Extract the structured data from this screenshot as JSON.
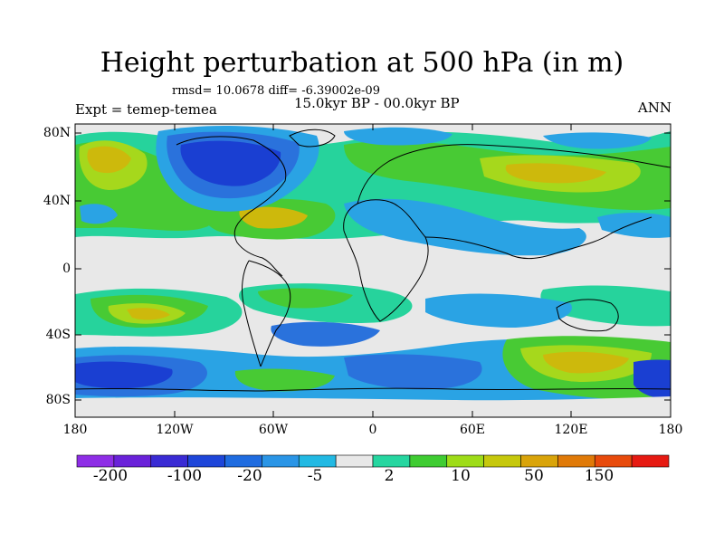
{
  "title": "Height perturbation at 500 hPa (in m)",
  "stats": "rmsd= 10.0678 diff= -6.39002e-09",
  "experiment": "Expt = temep-temea",
  "period": "15.0kyr BP - 00.0kyr BP",
  "season": "ANN",
  "lat_labels": [
    "80N",
    "40N",
    "0",
    "40S",
    "80S"
  ],
  "lon_labels": [
    "180",
    "120W",
    "60W",
    "0",
    "60E",
    "120E",
    "180"
  ],
  "colorbar": {
    "colors": [
      "#8e2ee6",
      "#6a22d9",
      "#3a2bd4",
      "#1e46d9",
      "#1f6ce0",
      "#2a95e6",
      "#22b9e3",
      "#e8e8e8",
      "#26d6a0",
      "#3fcc32",
      "#9edc18",
      "#c6c80c",
      "#d9a40a",
      "#e07a08",
      "#e84b0c",
      "#e61a12"
    ],
    "labels": [
      "-200",
      "-100",
      "-20",
      "-5",
      "2",
      "10",
      "50",
      "150"
    ]
  },
  "palette": {
    "strong_neg": "#1a3fd2",
    "mid_neg": "#2a72dc",
    "light_neg": "#2aa3e4",
    "neutral": "#e8e8e8",
    "light_pos": "#26d39c",
    "mid_pos": "#48ca34",
    "yellow_green": "#a6d81c",
    "yellow": "#cdb90c"
  }
}
